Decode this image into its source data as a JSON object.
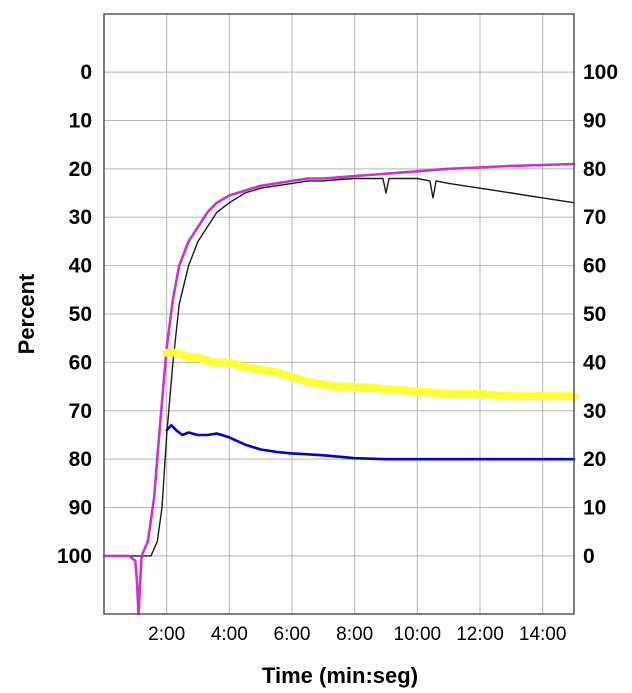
{
  "chart_data": {
    "type": "line",
    "xlabel": "Time (min:seg)",
    "ylabel": "Percent",
    "xlim": [
      0,
      15
    ],
    "x_ticks": [
      {
        "value": 2,
        "label": "2:00"
      },
      {
        "value": 4,
        "label": "4:00"
      },
      {
        "value": 6,
        "label": "6:00"
      },
      {
        "value": 8,
        "label": "8:00"
      },
      {
        "value": 10,
        "label": "10:00"
      },
      {
        "value": 12,
        "label": "12:00"
      },
      {
        "value": 14,
        "label": "14:00"
      }
    ],
    "y_left": {
      "lim": [
        112,
        -12
      ],
      "ticks": [
        0,
        10,
        20,
        30,
        40,
        50,
        60,
        70,
        80,
        90,
        100
      ],
      "labels": [
        "0",
        "10",
        "20",
        "30",
        "40",
        "50",
        "60",
        "70",
        "80",
        "90",
        "100"
      ]
    },
    "y_right": {
      "lim": [
        -12,
        112
      ],
      "ticks": [
        0,
        10,
        20,
        30,
        40,
        50,
        60,
        70,
        80,
        90,
        100
      ],
      "labels": [
        "0",
        "10",
        "20",
        "30",
        "40",
        "50",
        "60",
        "70",
        "80",
        "90",
        "100"
      ]
    },
    "grid": true,
    "legend": "none",
    "series": [
      {
        "color": "#1a1a1a",
        "width": 1.4,
        "x": [
          0,
          0.8,
          1.0,
          1.2,
          1.5,
          1.7,
          1.85,
          2.0,
          2.2,
          2.4,
          2.7,
          3.0,
          3.3,
          3.6,
          4.0,
          4.5,
          5.0,
          5.5,
          6.0,
          6.5,
          7.0,
          7.5,
          8.0,
          8.5,
          8.9,
          9.0,
          9.1,
          9.5,
          10.0,
          10.4,
          10.5,
          10.6,
          11.0,
          11.5,
          12.0,
          12.5,
          13.0,
          13.5,
          14.0,
          14.5,
          15.0
        ],
        "y": [
          0,
          0,
          0,
          0,
          0,
          3,
          10,
          25,
          40,
          52,
          60,
          65,
          68,
          71,
          73,
          75,
          76,
          76.5,
          77,
          77.5,
          77.5,
          77.8,
          78,
          78,
          78,
          75,
          78,
          78,
          78,
          77.5,
          74,
          77.5,
          77,
          76.5,
          76,
          75.5,
          75,
          74.5,
          74,
          73.5,
          73
        ]
      },
      {
        "color": "#cc33cc",
        "width": 2.6,
        "x": [
          0,
          0.5,
          0.8,
          1.0,
          1.05,
          1.1,
          1.2,
          1.4,
          1.6,
          1.8,
          2.0,
          2.2,
          2.4,
          2.7,
          3.0,
          3.3,
          3.6,
          4.0,
          4.5,
          5.0,
          5.5,
          6.0,
          6.5,
          7.0,
          8.0,
          9.0,
          10.0,
          11.0,
          12.0,
          13.0,
          14.0,
          15.0
        ],
        "y": [
          0,
          0,
          0,
          -1,
          -5,
          -12,
          0,
          3,
          12,
          28,
          43,
          53,
          60,
          65,
          68,
          71,
          73,
          74.5,
          75.5,
          76.5,
          77,
          77.5,
          78,
          78,
          78.5,
          79,
          79.5,
          80,
          80.3,
          80.6,
          80.8,
          81
        ]
      },
      {
        "color": "#ffff33",
        "width": 8,
        "x": [
          2.0,
          2.3,
          2.7,
          3.0,
          3.5,
          4.0,
          4.5,
          5.0,
          5.5,
          6.0,
          6.5,
          7.0,
          7.5,
          8.0,
          9.0,
          10.0,
          11.0,
          12.0,
          13.0,
          14.0,
          15.0
        ],
        "y": [
          42,
          42,
          41,
          41,
          40,
          40,
          39,
          38.5,
          38,
          37,
          36,
          35.5,
          35,
          35,
          34.5,
          34,
          33.5,
          33.5,
          33,
          33,
          33
        ]
      },
      {
        "color": "#0000cc",
        "width": 2.6,
        "x": [
          2.0,
          2.15,
          2.3,
          2.5,
          2.7,
          3.0,
          3.3,
          3.6,
          4.0,
          4.5,
          5.0,
          5.5,
          6.0,
          6.5,
          7.0,
          7.5,
          8.0,
          9.0,
          10.0,
          11.0,
          12.0,
          13.0,
          14.0,
          15.0
        ],
        "y": [
          26,
          27,
          26,
          25,
          25.5,
          25,
          25,
          25.3,
          24.5,
          23,
          22,
          21.5,
          21.2,
          21,
          20.8,
          20.5,
          20.2,
          20,
          20,
          20,
          20,
          20,
          20,
          20
        ]
      }
    ]
  }
}
